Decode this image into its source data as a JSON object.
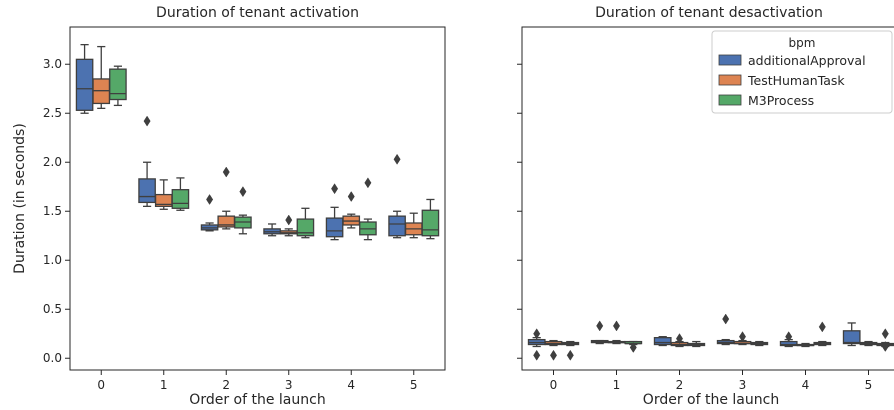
{
  "chart_data": [
    {
      "type": "box",
      "title": "Duration of tenant activation",
      "xlabel": "Order of the launch",
      "ylabel": "Duration (in seconds)",
      "categories": [
        "0",
        "1",
        "2",
        "3",
        "4",
        "5"
      ],
      "ylim": [
        -0.12,
        3.38
      ],
      "yticks": [
        "0.0",
        "0.5",
        "1.0",
        "1.5",
        "2.0",
        "2.5",
        "3.0"
      ],
      "grid": false,
      "series": [
        {
          "name": "additionalApproval",
          "color": "#4c72b0",
          "boxes": [
            {
              "whisker_low": 2.5,
              "q1": 2.53,
              "median": 2.75,
              "q3": 3.05,
              "whisker_high": 3.2,
              "outliers": []
            },
            {
              "whisker_low": 1.55,
              "q1": 1.59,
              "median": 1.65,
              "q3": 1.83,
              "whisker_high": 2.0,
              "outliers": [
                2.42
              ]
            },
            {
              "whisker_low": 1.3,
              "q1": 1.31,
              "median": 1.33,
              "q3": 1.36,
              "whisker_high": 1.38,
              "outliers": [
                1.62
              ]
            },
            {
              "whisker_low": 1.25,
              "q1": 1.27,
              "median": 1.29,
              "q3": 1.32,
              "whisker_high": 1.37,
              "outliers": []
            },
            {
              "whisker_low": 1.21,
              "q1": 1.24,
              "median": 1.3,
              "q3": 1.43,
              "whisker_high": 1.54,
              "outliers": [
                1.73
              ]
            },
            {
              "whisker_low": 1.23,
              "q1": 1.25,
              "median": 1.37,
              "q3": 1.45,
              "whisker_high": 1.5,
              "outliers": [
                2.03
              ]
            }
          ]
        },
        {
          "name": "TestHumanTask",
          "color": "#dd8452",
          "boxes": [
            {
              "whisker_low": 2.55,
              "q1": 2.6,
              "median": 2.73,
              "q3": 2.85,
              "whisker_high": 3.18,
              "outliers": []
            },
            {
              "whisker_low": 1.52,
              "q1": 1.55,
              "median": 1.57,
              "q3": 1.67,
              "whisker_high": 1.82,
              "outliers": []
            },
            {
              "whisker_low": 1.32,
              "q1": 1.34,
              "median": 1.36,
              "q3": 1.45,
              "whisker_high": 1.5,
              "outliers": [
                1.9
              ]
            },
            {
              "whisker_low": 1.25,
              "q1": 1.27,
              "median": 1.28,
              "q3": 1.3,
              "whisker_high": 1.32,
              "outliers": [
                1.41
              ]
            },
            {
              "whisker_low": 1.33,
              "q1": 1.36,
              "median": 1.4,
              "q3": 1.45,
              "whisker_high": 1.47,
              "outliers": [
                1.65
              ]
            },
            {
              "whisker_low": 1.23,
              "q1": 1.26,
              "median": 1.32,
              "q3": 1.38,
              "whisker_high": 1.48,
              "outliers": []
            }
          ]
        },
        {
          "name": "M3Process",
          "color": "#55a868",
          "boxes": [
            {
              "whisker_low": 2.58,
              "q1": 2.64,
              "median": 2.7,
              "q3": 2.95,
              "whisker_high": 2.98,
              "outliers": []
            },
            {
              "whisker_low": 1.51,
              "q1": 1.53,
              "median": 1.58,
              "q3": 1.72,
              "whisker_high": 1.84,
              "outliers": []
            },
            {
              "whisker_low": 1.27,
              "q1": 1.33,
              "median": 1.39,
              "q3": 1.44,
              "whisker_high": 1.46,
              "outliers": [
                1.7
              ]
            },
            {
              "whisker_low": 1.23,
              "q1": 1.25,
              "median": 1.28,
              "q3": 1.42,
              "whisker_high": 1.53,
              "outliers": []
            },
            {
              "whisker_low": 1.21,
              "q1": 1.26,
              "median": 1.32,
              "q3": 1.39,
              "whisker_high": 1.42,
              "outliers": [
                1.79
              ]
            },
            {
              "whisker_low": 1.22,
              "q1": 1.25,
              "median": 1.31,
              "q3": 1.51,
              "whisker_high": 1.62,
              "outliers": []
            }
          ]
        }
      ]
    },
    {
      "type": "box",
      "title": "Duration of tenant desactivation",
      "xlabel": "Order of the launch",
      "ylabel": "",
      "categories": [
        "0",
        "1",
        "2",
        "3",
        "4",
        "5"
      ],
      "ylim": [
        -0.12,
        3.38
      ],
      "grid": false,
      "legend": {
        "title": "bpm",
        "position": "top-right"
      },
      "series": [
        {
          "name": "additionalApproval",
          "color": "#4c72b0",
          "boxes": [
            {
              "whisker_low": 0.12,
              "q1": 0.14,
              "median": 0.16,
              "q3": 0.19,
              "whisker_high": 0.21,
              "outliers": [
                0.25,
                0.03
              ]
            },
            {
              "whisker_low": 0.15,
              "q1": 0.16,
              "median": 0.17,
              "q3": 0.18,
              "whisker_high": 0.18,
              "outliers": [
                0.33
              ]
            },
            {
              "whisker_low": 0.13,
              "q1": 0.14,
              "median": 0.16,
              "q3": 0.21,
              "whisker_high": 0.22,
              "outliers": []
            },
            {
              "whisker_low": 0.14,
              "q1": 0.15,
              "median": 0.16,
              "q3": 0.18,
              "whisker_high": 0.19,
              "outliers": [
                0.4
              ]
            },
            {
              "whisker_low": 0.12,
              "q1": 0.13,
              "median": 0.14,
              "q3": 0.17,
              "whisker_high": 0.19,
              "outliers": [
                0.22
              ]
            },
            {
              "whisker_low": 0.13,
              "q1": 0.15,
              "median": 0.16,
              "q3": 0.28,
              "whisker_high": 0.36,
              "outliers": []
            }
          ]
        },
        {
          "name": "TestHumanTask",
          "color": "#dd8452",
          "boxes": [
            {
              "whisker_low": 0.13,
              "q1": 0.14,
              "median": 0.15,
              "q3": 0.17,
              "whisker_high": 0.18,
              "outliers": [
                0.03
              ]
            },
            {
              "whisker_low": 0.15,
              "q1": 0.16,
              "median": 0.16,
              "q3": 0.17,
              "whisker_high": 0.18,
              "outliers": [
                0.33
              ]
            },
            {
              "whisker_low": 0.12,
              "q1": 0.13,
              "median": 0.14,
              "q3": 0.16,
              "whisker_high": 0.17,
              "outliers": [
                0.2
              ]
            },
            {
              "whisker_low": 0.14,
              "q1": 0.15,
              "median": 0.15,
              "q3": 0.17,
              "whisker_high": 0.18,
              "outliers": [
                0.22
              ]
            },
            {
              "whisker_low": 0.12,
              "q1": 0.13,
              "median": 0.13,
              "q3": 0.14,
              "whisker_high": 0.15,
              "outliers": []
            },
            {
              "whisker_low": 0.13,
              "q1": 0.14,
              "median": 0.15,
              "q3": 0.16,
              "whisker_high": 0.17,
              "outliers": []
            }
          ]
        },
        {
          "name": "M3Process",
          "color": "#55a868",
          "boxes": [
            {
              "whisker_low": 0.13,
              "q1": 0.14,
              "median": 0.15,
              "q3": 0.16,
              "whisker_high": 0.17,
              "outliers": [
                0.03
              ]
            },
            {
              "whisker_low": 0.14,
              "q1": 0.15,
              "median": 0.15,
              "q3": 0.17,
              "whisker_high": 0.17,
              "outliers": [
                0.11
              ]
            },
            {
              "whisker_low": 0.12,
              "q1": 0.13,
              "median": 0.14,
              "q3": 0.15,
              "whisker_high": 0.17,
              "outliers": []
            },
            {
              "whisker_low": 0.13,
              "q1": 0.14,
              "median": 0.15,
              "q3": 0.16,
              "whisker_high": 0.17,
              "outliers": []
            },
            {
              "whisker_low": 0.13,
              "q1": 0.14,
              "median": 0.15,
              "q3": 0.16,
              "whisker_high": 0.17,
              "outliers": [
                0.32
              ]
            },
            {
              "whisker_low": 0.12,
              "q1": 0.13,
              "median": 0.14,
              "q3": 0.15,
              "whisker_high": 0.16,
              "outliers": [
                0.25,
                0.12
              ]
            }
          ]
        }
      ]
    }
  ]
}
